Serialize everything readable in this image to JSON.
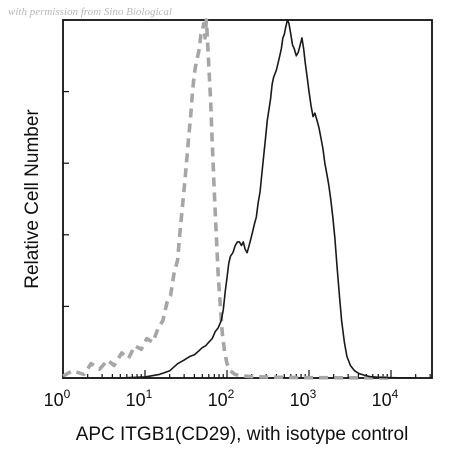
{
  "watermark": "with permission from Sino Biological",
  "chart_data": {
    "type": "line",
    "title": "",
    "xlabel": "APC  ITGB1(CD29), with isotype control",
    "ylabel": "Relative Cell Number",
    "xscale": "log",
    "xlim": [
      1,
      31623
    ],
    "ylim": [
      0,
      100
    ],
    "xticks": [
      {
        "base": "10",
        "exp": "0",
        "value": 1
      },
      {
        "base": "10",
        "exp": "1",
        "value": 10
      },
      {
        "base": "10",
        "exp": "2",
        "value": 100
      },
      {
        "base": "10",
        "exp": "3",
        "value": 1000
      },
      {
        "base": "10",
        "exp": "4",
        "value": 10000
      }
    ],
    "yticks": [
      0,
      20,
      40,
      60,
      80,
      100
    ],
    "grid": false,
    "legend": "none",
    "series": [
      {
        "style": "dashed",
        "color": "#a6a6a6",
        "points": [
          [
            1,
            0.5
          ],
          [
            1.3,
            2
          ],
          [
            1.8,
            1
          ],
          [
            2.2,
            4
          ],
          [
            2.8,
            2.5
          ],
          [
            3.5,
            5
          ],
          [
            4.2,
            3.5
          ],
          [
            5.2,
            7
          ],
          [
            6.3,
            5.5
          ],
          [
            7.5,
            9
          ],
          [
            9,
            8
          ],
          [
            10.5,
            11
          ],
          [
            12.5,
            10
          ],
          [
            14.5,
            14
          ],
          [
            16.5,
            16
          ],
          [
            18.5,
            21
          ],
          [
            20.5,
            23
          ],
          [
            22.5,
            29
          ],
          [
            25,
            33
          ],
          [
            27,
            42
          ],
          [
            29.5,
            51
          ],
          [
            32,
            60
          ],
          [
            34,
            67
          ],
          [
            36,
            73
          ],
          [
            38,
            80
          ],
          [
            40,
            85
          ],
          [
            42,
            88
          ],
          [
            44,
            90
          ],
          [
            46,
            92
          ],
          [
            48,
            96
          ],
          [
            50,
            97
          ],
          [
            52,
            99
          ],
          [
            54,
            95
          ],
          [
            56,
            100
          ],
          [
            58,
            94
          ],
          [
            60,
            87
          ],
          [
            63,
            78
          ],
          [
            66,
            66
          ],
          [
            70,
            52
          ],
          [
            74,
            40
          ],
          [
            78,
            29
          ],
          [
            83,
            20
          ],
          [
            88,
            12
          ],
          [
            94,
            7
          ],
          [
            100,
            4
          ],
          [
            110,
            2
          ],
          [
            125,
            1
          ],
          [
            150,
            0.6
          ],
          [
            200,
            0.4
          ],
          [
            400,
            0.2
          ],
          [
            1000,
            0.1
          ],
          [
            10000,
            0
          ]
        ]
      },
      {
        "style": "solid",
        "color": "#1a1a1a",
        "points": [
          [
            1,
            0
          ],
          [
            5,
            0
          ],
          [
            10,
            0.3
          ],
          [
            15,
            1
          ],
          [
            20,
            2
          ],
          [
            25,
            4
          ],
          [
            30,
            5
          ],
          [
            35,
            6
          ],
          [
            40,
            6.5
          ],
          [
            45,
            7.5
          ],
          [
            50,
            8.5
          ],
          [
            55,
            9
          ],
          [
            60,
            10
          ],
          [
            66,
            11
          ],
          [
            72,
            13
          ],
          [
            78,
            14
          ],
          [
            85,
            16
          ],
          [
            90,
            19
          ],
          [
            95,
            24
          ],
          [
            100,
            28
          ],
          [
            105,
            32
          ],
          [
            110,
            34
          ],
          [
            118,
            35
          ],
          [
            126,
            37
          ],
          [
            134,
            38
          ],
          [
            142,
            38
          ],
          [
            150,
            37
          ],
          [
            158,
            38
          ],
          [
            166,
            36
          ],
          [
            176,
            35
          ],
          [
            186,
            37
          ],
          [
            196,
            39
          ],
          [
            206,
            41
          ],
          [
            216,
            43
          ],
          [
            228,
            45
          ],
          [
            240,
            49
          ],
          [
            253,
            52
          ],
          [
            266,
            57
          ],
          [
            280,
            62
          ],
          [
            295,
            67
          ],
          [
            310,
            72
          ],
          [
            325,
            75
          ],
          [
            340,
            78
          ],
          [
            355,
            82
          ],
          [
            370,
            84
          ],
          [
            385,
            85
          ],
          [
            400,
            86
          ],
          [
            420,
            88
          ],
          [
            440,
            90
          ],
          [
            460,
            92
          ],
          [
            480,
            95
          ],
          [
            500,
            96
          ],
          [
            520,
            98
          ],
          [
            545,
            100
          ],
          [
            570,
            99
          ],
          [
            600,
            96
          ],
          [
            630,
            93
          ],
          [
            660,
            92
          ],
          [
            700,
            90
          ],
          [
            740,
            91
          ],
          [
            780,
            93
          ],
          [
            820,
            95
          ],
          [
            860,
            92
          ],
          [
            900,
            88
          ],
          [
            950,
            84
          ],
          [
            1000,
            80
          ],
          [
            1060,
            76
          ],
          [
            1120,
            73
          ],
          [
            1180,
            74
          ],
          [
            1250,
            72
          ],
          [
            1320,
            70
          ],
          [
            1400,
            67
          ],
          [
            1480,
            64
          ],
          [
            1560,
            60
          ],
          [
            1650,
            57
          ],
          [
            1740,
            54
          ],
          [
            1840,
            50
          ],
          [
            1950,
            45
          ],
          [
            2070,
            39
          ],
          [
            2200,
            31
          ],
          [
            2350,
            23
          ],
          [
            2500,
            16
          ],
          [
            2700,
            10
          ],
          [
            2900,
            6
          ],
          [
            3200,
            3.5
          ],
          [
            3600,
            2
          ],
          [
            4100,
            1.2
          ],
          [
            4700,
            0.8
          ],
          [
            5500,
            0.4
          ],
          [
            7000,
            0.2
          ],
          [
            10000,
            0.1
          ],
          [
            20000,
            0
          ]
        ]
      }
    ]
  }
}
